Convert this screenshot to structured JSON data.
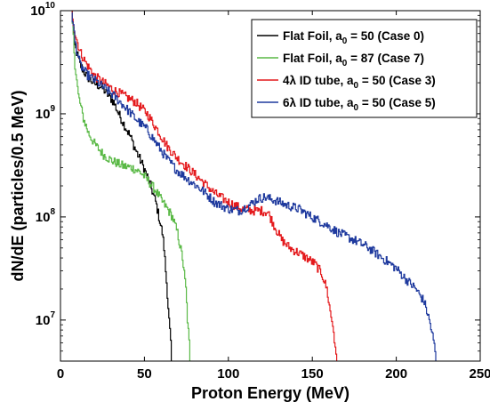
{
  "chart_data": {
    "type": "line",
    "xlabel": "Proton Energy (MeV)",
    "ylabel": "dN/dE (particles/0.5 MeV)",
    "xlim": [
      0,
      250
    ],
    "ylim": [
      4000000,
      10000000000
    ],
    "yscale": "log",
    "grid": false,
    "legend_position": "top-right",
    "x_ticks": [
      {
        "value": 0,
        "label": "0"
      },
      {
        "value": 50,
        "label": "50"
      },
      {
        "value": 100,
        "label": "100"
      },
      {
        "value": 150,
        "label": "150"
      },
      {
        "value": 200,
        "label": "200"
      },
      {
        "value": 250,
        "label": "250"
      }
    ],
    "y_ticks": [
      {
        "value": 10000000,
        "base": "10",
        "exp": "7"
      },
      {
        "value": 100000000,
        "base": "10",
        "exp": "8"
      },
      {
        "value": 1000000000,
        "base": "10",
        "exp": "9"
      },
      {
        "value": 10000000000,
        "base": "10",
        "exp": "10"
      }
    ],
    "series": [
      {
        "name_parts": [
          "Flat Foil, a",
          "0",
          " = 50 (Case 0)"
        ],
        "color": "#000000",
        "points": [
          [
            7,
            10000000000
          ],
          [
            9,
            4500000000
          ],
          [
            12,
            3000000000
          ],
          [
            16,
            2300000000
          ],
          [
            20,
            2000000000
          ],
          [
            25,
            1800000000
          ],
          [
            29,
            1500000000
          ],
          [
            32,
            1300000000
          ],
          [
            35,
            1000000000
          ],
          [
            38,
            800000000
          ],
          [
            42,
            600000000
          ],
          [
            45,
            450000000
          ],
          [
            50,
            300000000
          ],
          [
            54,
            200000000
          ],
          [
            57,
            140000000
          ],
          [
            59,
            100000000
          ],
          [
            61,
            70000000
          ],
          [
            62,
            50000000
          ],
          [
            63,
            30000000
          ],
          [
            64,
            18000000
          ],
          [
            65,
            10000000
          ],
          [
            66,
            6000000
          ],
          [
            66.5,
            4000000
          ]
        ]
      },
      {
        "name_parts": [
          "Flat Foil, a",
          "0",
          " = 87 (Case 7)"
        ],
        "color": "#5ab946",
        "points": [
          [
            7,
            10000000000
          ],
          [
            9,
            3000000000
          ],
          [
            11,
            1500000000
          ],
          [
            14,
            900000000
          ],
          [
            17,
            650000000
          ],
          [
            21,
            500000000
          ],
          [
            26,
            400000000
          ],
          [
            31,
            350000000
          ],
          [
            38,
            310000000
          ],
          [
            43,
            300000000
          ],
          [
            48,
            270000000
          ],
          [
            52,
            230000000
          ],
          [
            57,
            180000000
          ],
          [
            61,
            140000000
          ],
          [
            64,
            120000000
          ],
          [
            67,
            100000000
          ],
          [
            70,
            70000000
          ],
          [
            73,
            40000000
          ],
          [
            75,
            20000000
          ],
          [
            76,
            10000000
          ],
          [
            77,
            6000000
          ],
          [
            77.5,
            4000000
          ]
        ]
      },
      {
        "name_parts": [
          "4λ ID tube, a",
          "0",
          " = 50 (Case 3)"
        ],
        "color": "#e4191c",
        "points": [
          [
            7,
            10000000000
          ],
          [
            9,
            6000000000
          ],
          [
            12,
            4000000000
          ],
          [
            16,
            3000000000
          ],
          [
            21,
            2300000000
          ],
          [
            26,
            2000000000
          ],
          [
            32,
            1700000000
          ],
          [
            38,
            1500000000
          ],
          [
            45,
            1300000000
          ],
          [
            52,
            1000000000
          ],
          [
            58,
            700000000
          ],
          [
            64,
            480000000
          ],
          [
            70,
            370000000
          ],
          [
            78,
            280000000
          ],
          [
            85,
            220000000
          ],
          [
            92,
            170000000
          ],
          [
            100,
            140000000
          ],
          [
            108,
            120000000
          ],
          [
            115,
            115000000
          ],
          [
            120,
            115000000
          ],
          [
            124,
            110000000
          ],
          [
            128,
            80000000
          ],
          [
            132,
            60000000
          ],
          [
            137,
            50000000
          ],
          [
            142,
            45000000
          ],
          [
            147,
            40000000
          ],
          [
            152,
            35000000
          ],
          [
            156,
            28000000
          ],
          [
            159,
            20000000
          ],
          [
            161,
            12000000
          ],
          [
            163,
            8000000
          ],
          [
            164,
            5000000
          ],
          [
            165,
            4000000
          ]
        ]
      },
      {
        "name_parts": [
          "6λ ID tube, a",
          "0",
          " = 50 (Case 5)"
        ],
        "color": "#1f3a9e",
        "points": [
          [
            7,
            10000000000
          ],
          [
            9,
            5000000000
          ],
          [
            12,
            3000000000
          ],
          [
            16,
            2400000000
          ],
          [
            21,
            2100000000
          ],
          [
            26,
            1800000000
          ],
          [
            32,
            1500000000
          ],
          [
            38,
            1200000000
          ],
          [
            45,
            900000000
          ],
          [
            52,
            700000000
          ],
          [
            58,
            500000000
          ],
          [
            64,
            360000000
          ],
          [
            70,
            280000000
          ],
          [
            78,
            220000000
          ],
          [
            85,
            180000000
          ],
          [
            92,
            140000000
          ],
          [
            100,
            120000000
          ],
          [
            107,
            115000000
          ],
          [
            113,
            130000000
          ],
          [
            118,
            150000000
          ],
          [
            122,
            155000000
          ],
          [
            128,
            145000000
          ],
          [
            135,
            130000000
          ],
          [
            142,
            120000000
          ],
          [
            150,
            100000000
          ],
          [
            158,
            85000000
          ],
          [
            166,
            70000000
          ],
          [
            175,
            60000000
          ],
          [
            184,
            50000000
          ],
          [
            192,
            40000000
          ],
          [
            200,
            32000000
          ],
          [
            206,
            25000000
          ],
          [
            212,
            20000000
          ],
          [
            217,
            15000000
          ],
          [
            220,
            10000000
          ],
          [
            222,
            7000000
          ],
          [
            223.5,
            5000000
          ],
          [
            224,
            4000000
          ]
        ]
      }
    ]
  }
}
